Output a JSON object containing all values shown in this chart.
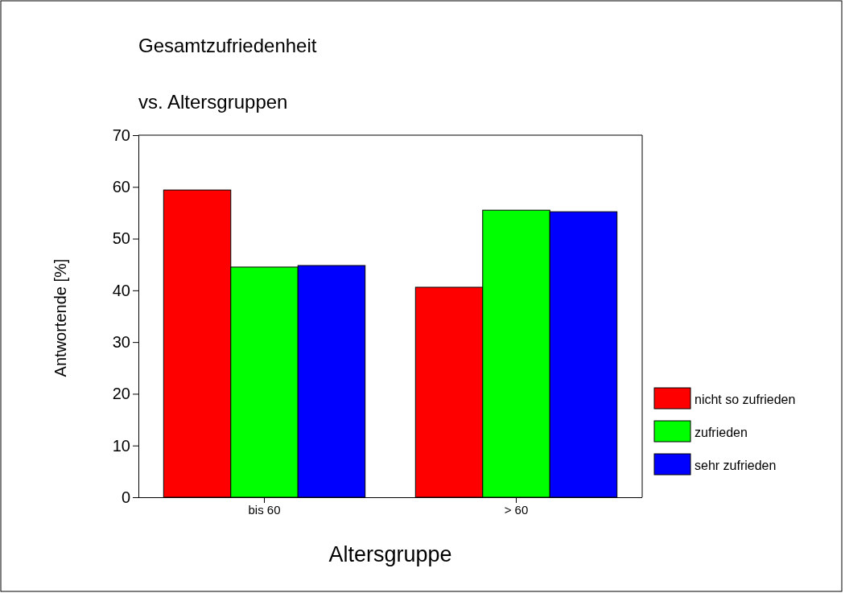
{
  "chart_data": {
    "type": "bar",
    "title": "Gesamtzufriedenheit",
    "subtitle": "vs. Altersgruppen",
    "xlabel": "Altersgruppe",
    "ylabel": "Antwortende [%]",
    "categories": [
      "bis 60",
      "> 60"
    ],
    "series": [
      {
        "name": "nicht so zufrieden",
        "color": "#ff0000",
        "values": [
          59.4,
          40.6
        ]
      },
      {
        "name": "zufrieden",
        "color": "#00ff00",
        "values": [
          44.5,
          55.5
        ]
      },
      {
        "name": "sehr zufrieden",
        "color": "#0000ff",
        "values": [
          44.8,
          55.2
        ]
      }
    ],
    "ylim": [
      0,
      70
    ],
    "yticks": [
      0,
      10,
      20,
      30,
      40,
      50,
      60,
      70
    ],
    "grid": false,
    "legend": "right"
  }
}
